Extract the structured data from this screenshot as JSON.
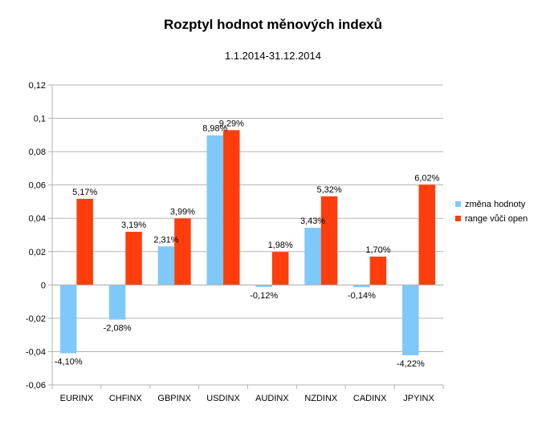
{
  "chart_data": {
    "type": "bar",
    "title": "Rozptyl hodnot měnových indexů",
    "subtitle": "1.1.2014-31.12.2014",
    "categories": [
      "EURINX",
      "CHFINX",
      "GBPINX",
      "USDINX",
      "AUDINX",
      "NZDINX",
      "CADINX",
      "JPYINX"
    ],
    "series": [
      {
        "name": "změna hodnoty",
        "color": "#7fc8fa",
        "values": [
          -0.041,
          -0.0208,
          0.0231,
          0.0898,
          -0.0012,
          0.0343,
          -0.0014,
          -0.0422
        ],
        "labels": [
          "-4,10%",
          "-2,08%",
          "2,31%",
          "8,98%",
          "-0,12%",
          "3,43%",
          "-0,14%",
          "-4,22%"
        ]
      },
      {
        "name": "range vůči open",
        "color": "#ff3d0d",
        "values": [
          0.0517,
          0.0319,
          0.0399,
          0.0929,
          0.0198,
          0.0532,
          0.017,
          0.0602
        ],
        "labels": [
          "5,17%",
          "3,19%",
          "3,99%",
          "9,29%",
          "1,98%",
          "5,32%",
          "1,70%",
          "6,02%"
        ]
      }
    ],
    "ylim": [
      -0.06,
      0.12
    ],
    "yticks": [
      -0.06,
      -0.04,
      -0.02,
      0,
      0.02,
      0.04,
      0.06,
      0.08,
      0.1,
      0.12
    ],
    "ytick_labels": [
      "-0,06",
      "-0,04",
      "-0,02",
      "0",
      "0,02",
      "0,04",
      "0,06",
      "0,08",
      "0,1",
      "0,12"
    ],
    "xlabel": "",
    "ylabel": "",
    "grid": true,
    "legend_position": "right"
  }
}
